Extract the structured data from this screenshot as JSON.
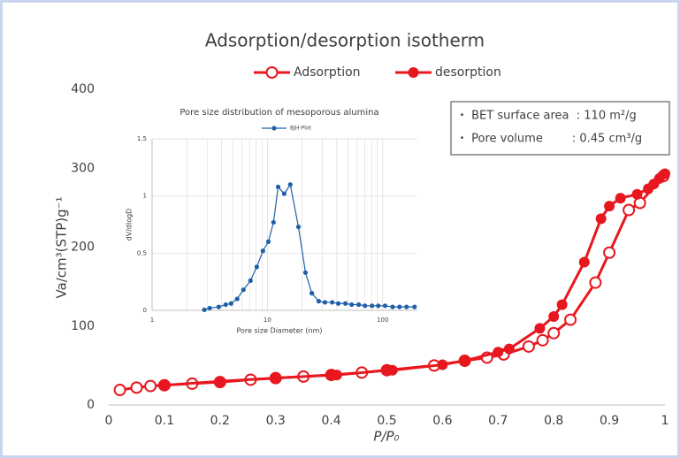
{
  "chart_data": [
    {
      "type": "line",
      "title": "Adsorption/desorption isotherm",
      "x_label": "P/P₀",
      "y_label": "Va/cm³(STP)g⁻¹",
      "xlim": [
        0,
        1
      ],
      "xticks": [
        0,
        0.1,
        0.2,
        0.3,
        0.4,
        0.5,
        0.6,
        0.7,
        0.8,
        0.9,
        1
      ],
      "ylim": [
        0,
        400
      ],
      "yticks": [
        0,
        100,
        200,
        300,
        400
      ],
      "grid": false,
      "legend": "top",
      "annotations": [
        "・ BET surface area  : 110 m²/g",
        "・ Pore volume        : 0.45 cm³/g"
      ],
      "series": [
        {
          "name": "Adsorption",
          "color": "#e8171f",
          "marker": "open",
          "x": [
            0.02,
            0.05,
            0.075,
            0.1,
            0.15,
            0.2,
            0.255,
            0.3,
            0.35,
            0.4,
            0.455,
            0.5,
            0.585,
            0.64,
            0.68,
            0.71,
            0.755,
            0.78,
            0.8,
            0.83,
            0.875,
            0.9,
            0.935,
            0.955,
            0.997
          ],
          "values": [
            19,
            22,
            24,
            25,
            27,
            29,
            32,
            34,
            36,
            38,
            41,
            44,
            50,
            56,
            60,
            64,
            74,
            82,
            91,
            108,
            155,
            193,
            247,
            256,
            290
          ]
        },
        {
          "name": "desorption",
          "color": "#e8171f",
          "marker": "filled",
          "x": [
            0.1,
            0.2,
            0.3,
            0.4,
            0.41,
            0.5,
            0.51,
            0.6,
            0.64,
            0.7,
            0.72,
            0.775,
            0.8,
            0.815,
            0.855,
            0.885,
            0.9,
            0.92,
            0.95,
            0.97,
            0.98,
            0.99,
            1.0
          ],
          "values": [
            25,
            30,
            34,
            38,
            38,
            44,
            44,
            51,
            56,
            67,
            71,
            97,
            112,
            127,
            181,
            236,
            252,
            262,
            267,
            274,
            280,
            287,
            293
          ]
        }
      ]
    },
    {
      "type": "line",
      "title": "Pore size distribution of mesoporous alumina",
      "x_label": "Pore size Diameter (nm)",
      "y_label": "dV/dlogD",
      "xscale": "log",
      "xlim": [
        1,
        200
      ],
      "xticks": [
        1,
        10,
        100
      ],
      "ylim": [
        0,
        1.5
      ],
      "yticks": [
        0,
        0.5,
        1,
        1.5
      ],
      "grid": true,
      "legend": "top",
      "series": [
        {
          "name": "BJH-Plot",
          "color": "#1f5fa8",
          "marker": "small",
          "x": [
            2.84,
            3.16,
            3.78,
            4.35,
            4.84,
            5.47,
            6.2,
            7.14,
            8.09,
            9.15,
            10.2,
            11.3,
            12.4,
            14.0,
            15.8,
            18.6,
            21.4,
            24.3,
            27.9,
            31.6,
            36.5,
            41.2,
            47.5,
            53.8,
            62,
            70.2,
            80.9,
            91.6,
            105,
            122,
            140,
            161,
            189
          ],
          "values": [
            0.005,
            0.02,
            0.03,
            0.05,
            0.06,
            0.1,
            0.18,
            0.26,
            0.38,
            0.52,
            0.6,
            0.77,
            1.08,
            1.02,
            1.1,
            0.73,
            0.33,
            0.15,
            0.08,
            0.07,
            0.07,
            0.06,
            0.06,
            0.05,
            0.05,
            0.04,
            0.04,
            0.04,
            0.04,
            0.03,
            0.03,
            0.03,
            0.03
          ]
        }
      ]
    }
  ]
}
